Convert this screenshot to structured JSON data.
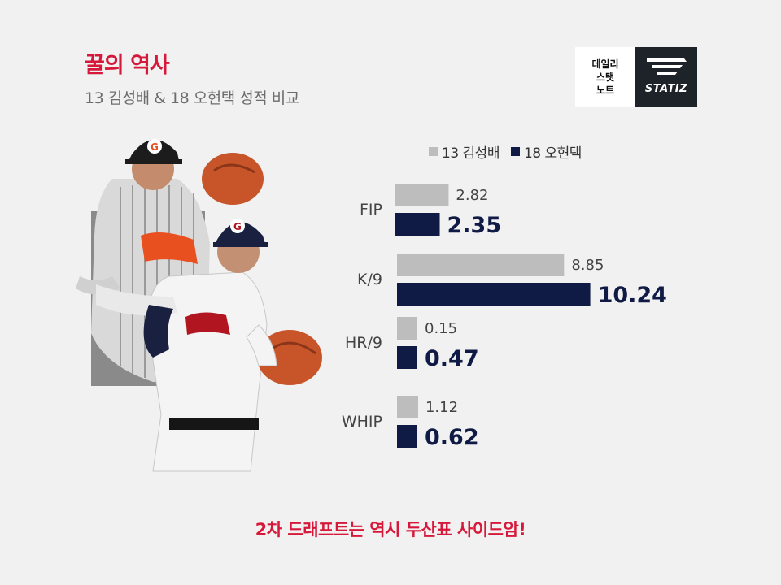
{
  "header": {
    "title": "꿀의 역사",
    "subtitle": "13 김성배 & 18 오현택 성적 비교"
  },
  "logo": {
    "note_lines": [
      "데일리",
      "스탯",
      "노트"
    ],
    "brand": "STATIZ"
  },
  "footer": {
    "text": "2차 드래프트는 역시 두산표 사이드암!"
  },
  "colors": {
    "accent": "#d6193a",
    "series_a": "#bdbdbd",
    "series_b": "#0f1a45"
  },
  "chart_data": {
    "type": "bar",
    "orientation": "horizontal",
    "categories": [
      "FIP",
      "K/9",
      "HR/9",
      "WHIP"
    ],
    "series": [
      {
        "name": "13 김성배",
        "values": [
          2.82,
          8.85,
          0.15,
          1.12
        ],
        "labels": [
          "2.82",
          "8.85",
          "0.15",
          "1.12"
        ]
      },
      {
        "name": "18 오현택",
        "values": [
          2.35,
          10.24,
          0.47,
          0.62
        ],
        "labels": [
          "2.35",
          "10.24",
          "0.47",
          "0.62"
        ]
      }
    ],
    "legend": "top",
    "grid": false
  }
}
